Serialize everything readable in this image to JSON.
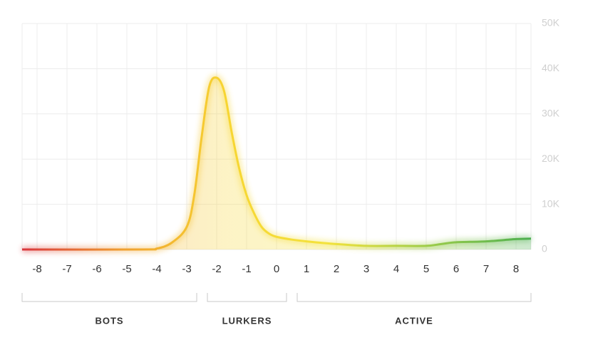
{
  "chart_data": {
    "type": "area",
    "x": [
      -8.5,
      -4.5,
      -4,
      -3.5,
      -3,
      -2.75,
      -2.5,
      -2.25,
      -2,
      -1.75,
      -1.5,
      -1.25,
      -1,
      -0.75,
      -0.5,
      -0.25,
      0,
      0.5,
      1,
      2,
      3,
      4,
      5,
      5.5,
      6,
      7,
      8,
      8.5
    ],
    "values": [
      0,
      0,
      200,
      1500,
      5000,
      12000,
      25000,
      36000,
      38000,
      35000,
      26000,
      18000,
      12000,
      8000,
      5000,
      3500,
      2800,
      2200,
      1800,
      1200,
      800,
      800,
      800,
      1200,
      1600,
      1800,
      2300,
      2400
    ],
    "colors": [
      "#d9363e",
      "#f0a030",
      "#f7d531",
      "#f3e23c",
      "#9ccc4a",
      "#4caf50"
    ],
    "xlim": [
      -8.5,
      8.5
    ],
    "xticks": [
      -8,
      -7,
      -6,
      -5,
      -4,
      -3,
      -2,
      -1,
      0,
      1,
      2,
      3,
      4,
      5,
      6,
      7,
      8
    ],
    "ylim": [
      0,
      50000
    ],
    "yticks": [
      0,
      {
        "value": 10000,
        "label": "10K"
      },
      {
        "value": 20000,
        "label": "20K"
      },
      {
        "value": 30000,
        "label": "30K"
      },
      {
        "value": 40000,
        "label": "40K"
      },
      {
        "value": 50000,
        "label": "50K"
      }
    ],
    "grid": true,
    "groups": [
      "BOTS",
      "LURKERS",
      "ACTIVE"
    ]
  }
}
